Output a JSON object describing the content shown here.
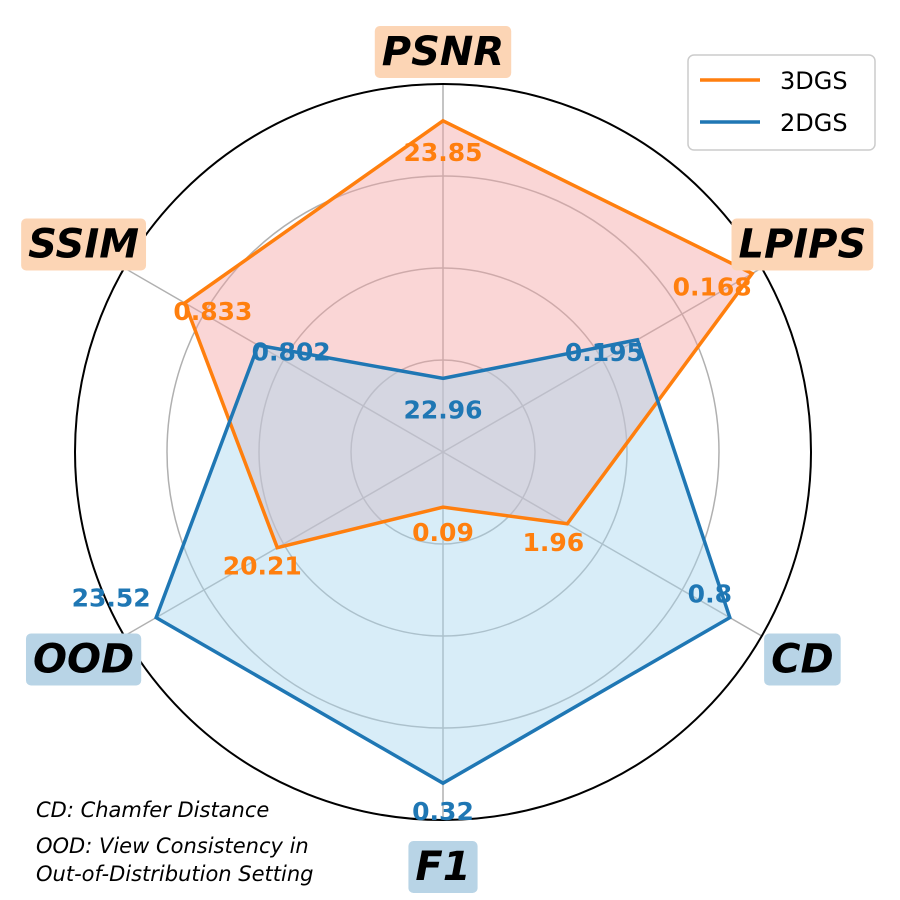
{
  "chart_data": {
    "type": "radar",
    "axes": [
      {
        "name": "PSNR",
        "group": "orange"
      },
      {
        "name": "LPIPS",
        "group": "orange"
      },
      {
        "name": "CD",
        "group": "blue"
      },
      {
        "name": "F1",
        "group": "blue"
      },
      {
        "name": "OOD",
        "group": "blue"
      },
      {
        "name": "SSIM",
        "group": "orange"
      }
    ],
    "series": [
      {
        "name": "3DGS",
        "color": "#ff7f0e",
        "fill": "#f4a3a3",
        "normalized": [
          0.9,
          0.97,
          0.39,
          0.15,
          0.52,
          0.81
        ],
        "labels": [
          "23.85",
          "0.168",
          "1.96",
          "0.09",
          "20.21",
          "0.833"
        ]
      },
      {
        "name": "2DGS",
        "color": "#1f77b4",
        "fill": "#a8d8f0",
        "normalized": [
          0.2,
          0.61,
          0.9,
          0.9,
          0.9,
          0.58
        ],
        "labels": [
          "22.96",
          "0.195",
          "0.8",
          "0.32",
          "23.52",
          "0.802"
        ]
      }
    ],
    "rings": 4,
    "legend_position": "top-right",
    "axis_label_colors": {
      "orange": "#fcd5b5",
      "blue": "#b8d4e6"
    },
    "notes": [
      "CD: Chamfer Distance",
      "OOD: View Consistency in",
      "Out-of-Distribution Setting"
    ]
  }
}
